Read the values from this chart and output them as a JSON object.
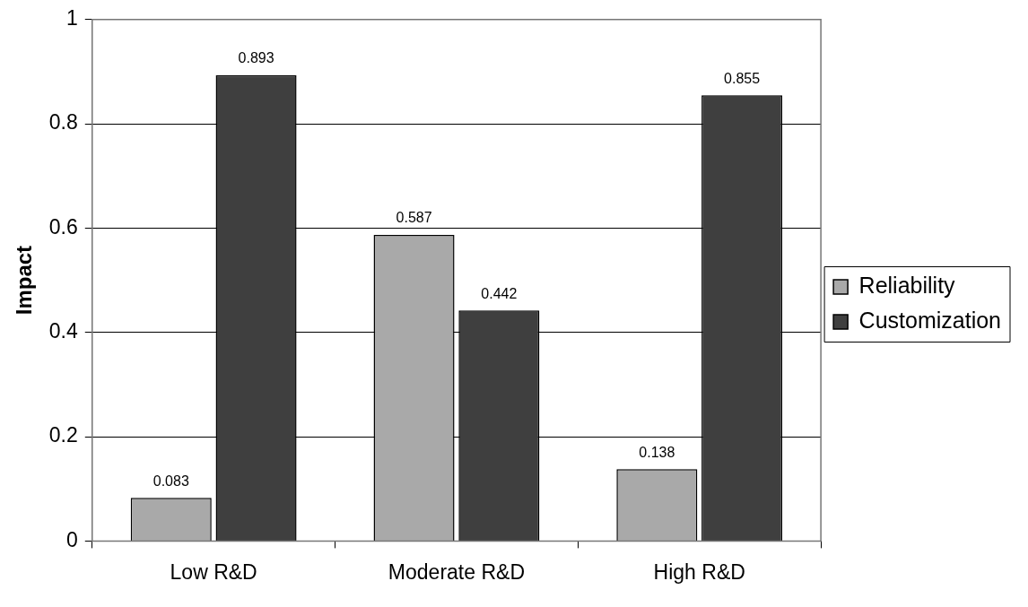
{
  "chart_data": {
    "type": "bar",
    "ylabel": "Impact",
    "categories": [
      "Low R&D",
      "Moderate R&D",
      "High R&D"
    ],
    "series": [
      {
        "name": "Reliability",
        "color": "#a9a9a9",
        "values": [
          0.083,
          0.587,
          0.138
        ]
      },
      {
        "name": "Customization",
        "color": "#3f3f3f",
        "values": [
          0.893,
          0.442,
          0.855
        ]
      }
    ],
    "ylim": [
      0,
      1
    ],
    "yticks": [
      0,
      0.2,
      0.4,
      0.6,
      0.8,
      1
    ],
    "grid": "y",
    "legend": "right",
    "data_labels": true
  }
}
